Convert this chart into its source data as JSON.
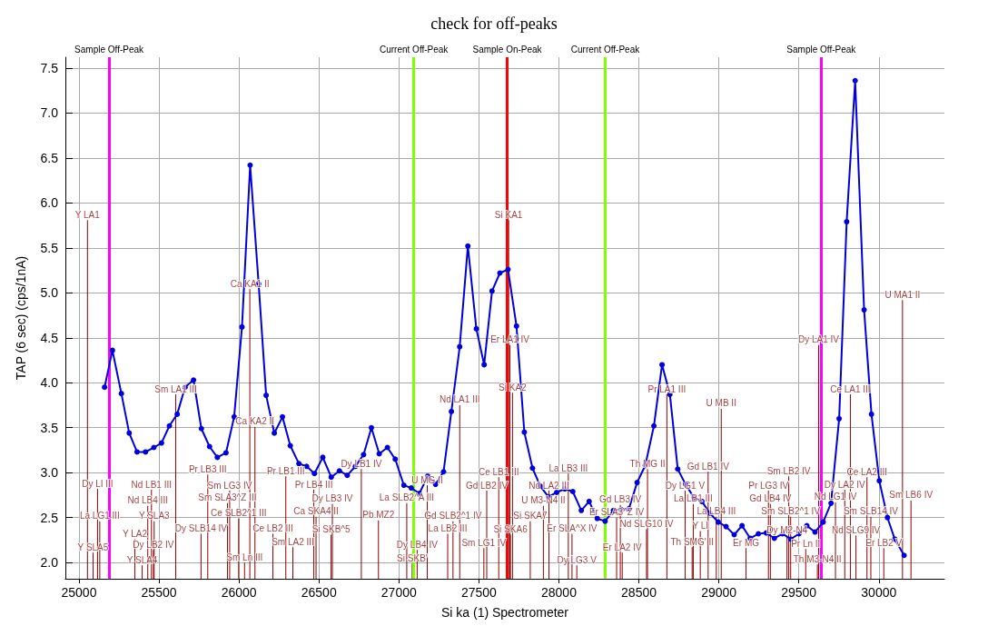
{
  "chart_data": {
    "type": "line",
    "title": "check for off-peaks",
    "xlabel": "Si ka (1) Spectrometer",
    "ylabel": "TAP (6 sec) (cps/1nA)",
    "xlim": [
      24915,
      30410
    ],
    "ylim": [
      1.82,
      7.62
    ],
    "xticks": [
      25000,
      25500,
      26000,
      26500,
      27000,
      27500,
      28000,
      28500,
      29000,
      29500,
      30000
    ],
    "yticks": [
      {
        "value": 2,
        "label": "2.0"
      },
      {
        "value": 2.5,
        "label": "2.5"
      },
      {
        "value": 3,
        "label": "3.0"
      },
      {
        "value": 3.5,
        "label": "3.5"
      },
      {
        "value": 4,
        "label": "4.0"
      },
      {
        "value": 4.5,
        "label": "4.5"
      },
      {
        "value": 5,
        "label": "5.0"
      },
      {
        "value": 5.5,
        "label": "5.5"
      },
      {
        "value": 6,
        "label": "6.0"
      },
      {
        "value": 6.5,
        "label": "6.5"
      },
      {
        "value": 7,
        "label": "7.0"
      },
      {
        "value": 7.5,
        "label": "7.5"
      }
    ],
    "grid": true,
    "marker": "circle",
    "line_style": "solid",
    "series": [
      {
        "color": "#0000dd",
        "x": [
          25160,
          25209,
          25265,
          25314,
          25363,
          25416,
          25468,
          25516,
          25565,
          25614,
          25663,
          25716,
          25765,
          25816,
          25865,
          25919,
          25970,
          26019,
          26070,
          26123,
          26170,
          26221,
          26272,
          26321,
          26375,
          26423,
          26472,
          26524,
          26577,
          26628,
          26677,
          26728,
          26779,
          26828,
          26877,
          26928,
          26977,
          27031,
          27077,
          27128,
          27180,
          27229,
          27279,
          27328,
          27380,
          27431,
          27484,
          27533,
          27582,
          27631,
          27682,
          27735,
          27784,
          27835,
          27884,
          27935,
          27986,
          28037,
          28087,
          28140,
          28189,
          28240,
          28289,
          28341,
          28389,
          28438,
          28489,
          28540,
          28594,
          28645,
          28694,
          28743,
          28792,
          28845,
          28894,
          28943,
          28996,
          29045,
          29096,
          29145,
          29196,
          29247,
          29296,
          29347,
          29398,
          29449,
          29501,
          29550,
          29601,
          29652,
          29701,
          29752,
          29799,
          29852,
          29908,
          29954,
          30003,
          30054,
          30100,
          30158
        ],
        "values": [
          3.95,
          4.36,
          3.88,
          3.44,
          3.23,
          3.23,
          3.28,
          3.33,
          3.52,
          3.65,
          3.95,
          4.03,
          3.49,
          3.29,
          3.17,
          3.22,
          3.62,
          4.62,
          6.42,
          5.1,
          3.86,
          3.44,
          3.62,
          3.3,
          3.1,
          3.07,
          2.99,
          3.17,
          2.95,
          3.02,
          2.97,
          3.07,
          3.2,
          3.5,
          3.21,
          3.28,
          3.15,
          2.86,
          2.83,
          2.77,
          2.96,
          2.87,
          3.01,
          3.68,
          4.4,
          5.52,
          4.6,
          4.2,
          5.02,
          5.22,
          5.26,
          4.63,
          3.45,
          3.05,
          2.85,
          2.73,
          2.78,
          2.82,
          2.79,
          2.58,
          2.68,
          2.49,
          2.46,
          2.58,
          2.59,
          2.6,
          2.89,
          3.08,
          3.52,
          4.2,
          3.87,
          3.04,
          2.87,
          2.72,
          2.68,
          2.55,
          2.45,
          2.4,
          2.31,
          2.41,
          2.27,
          2.32,
          2.33,
          2.27,
          2.32,
          2.26,
          2.32,
          2.41,
          2.34,
          2.45,
          2.66,
          3.6,
          5.79,
          7.36,
          4.81,
          3.65,
          2.91,
          2.5,
          2.26,
          2.08
        ]
      },
      {
        "type": "bar",
        "color": "#8b0000",
        "x": [
          25053,
          25088,
          25116,
          25130,
          25349,
          25395,
          25430,
          25453,
          25465,
          25470,
          25605,
          25763,
          25805,
          25928,
          25942,
          25998,
          26035,
          26068,
          26100,
          26212,
          26293,
          26337,
          26468,
          26482,
          26576,
          26584,
          26765,
          26872,
          27049,
          27083,
          27114,
          27177,
          27305,
          27338,
          27380,
          27531,
          27549,
          27624,
          27686,
          27694,
          27697,
          27710,
          27821,
          27903,
          27938,
          28059,
          28082,
          28112,
          28361,
          28384,
          28396,
          28548,
          28554,
          28675,
          28789,
          28833,
          28840,
          28884,
          28933,
          28984,
          29015,
          29170,
          29310,
          29322,
          29426,
          29437,
          29449,
          29543,
          29616,
          29624,
          29729,
          29787,
          29822,
          29857,
          29926,
          29950,
          30031,
          30148,
          30201
        ],
        "values": [
          5.81,
          2.11,
          2.82,
          2.46,
          2.26,
          1.97,
          2.63,
          2.81,
          2.14,
          2.46,
          3.87,
          2.32,
          2.98,
          2.66,
          2.8,
          2.49,
          2.0,
          5.04,
          3.51,
          2.32,
          2.96,
          2.17,
          2.81,
          2.51,
          2.31,
          2.65,
          3.04,
          2.47,
          2.66,
          1.99,
          2.14,
          2.86,
          2.32,
          2.46,
          3.75,
          2.16,
          2.8,
          2.95,
          5.81,
          4.42,
          2.31,
          3.89,
          2.46,
          2.63,
          2.8,
          2.99,
          2.32,
          1.97,
          2.5,
          2.64,
          2.11,
          2.37,
          3.04,
          3.87,
          2.8,
          2.17,
          2.65,
          2.35,
          3.01,
          2.51,
          3.71,
          2.16,
          2.8,
          2.65,
          2.3,
          2.96,
          2.51,
          2.15,
          1.98,
          4.42,
          2.67,
          2.81,
          3.87,
          2.3,
          2.95,
          2.51,
          2.16,
          4.92,
          2.69
        ]
      }
    ],
    "ref_lines": [
      {
        "axis": "x",
        "value": 27677,
        "label": "Sample On-Peak",
        "color": "#ff0000"
      },
      {
        "axis": "x",
        "value": 25188,
        "label": "Sample Off-Peak",
        "color": "#ff00ff"
      },
      {
        "axis": "x",
        "value": 29640,
        "label": "Sample Off-Peak",
        "color": "#ff00ff"
      },
      {
        "axis": "x",
        "value": 27093,
        "label": "Current Off-Peak",
        "color": "#80ff00"
      },
      {
        "axis": "x",
        "value": 28290,
        "label": "Current Off-Peak",
        "color": "#80ff00"
      }
    ],
    "annotations": [
      {
        "text": "Y LA1",
        "x": 25053,
        "y": 5.81
      },
      {
        "text": "Y SLA5",
        "x": 25088,
        "y": 2.11
      },
      {
        "text": "Dy LI III",
        "x": 25116,
        "y": 2.82
      },
      {
        "text": "La LG1 III",
        "x": 25130,
        "y": 2.46
      },
      {
        "text": "Y LA2",
        "x": 25349,
        "y": 2.26
      },
      {
        "text": "Y SLA4",
        "x": 25395,
        "y": 1.97
      },
      {
        "text": "Nd LB4 III",
        "x": 25430,
        "y": 2.63
      },
      {
        "text": "Nd LB1 III",
        "x": 25453,
        "y": 2.81
      },
      {
        "text": "Dy LB2 IV",
        "x": 25465,
        "y": 2.14
      },
      {
        "text": "Y SLA3",
        "x": 25470,
        "y": 2.46
      },
      {
        "text": "Sm LA1 III",
        "x": 25605,
        "y": 3.87
      },
      {
        "text": "Dy SLB14 IV",
        "x": 25763,
        "y": 2.32
      },
      {
        "text": "Pr LB3 III",
        "x": 25805,
        "y": 2.98
      },
      {
        "text": "Sm SLA3^Z III",
        "x": 25928,
        "y": 2.66
      },
      {
        "text": "Sm LG3 IV",
        "x": 25942,
        "y": 2.8
      },
      {
        "text": "Ce SLB2^1 III",
        "x": 25998,
        "y": 2.49
      },
      {
        "text": "Sm Ln III",
        "x": 26035,
        "y": 2.0
      },
      {
        "text": "Ca KA1 II",
        "x": 26068,
        "y": 5.04
      },
      {
        "text": "Ca KA2 II",
        "x": 26100,
        "y": 3.51
      },
      {
        "text": "Ce LB2 III",
        "x": 26212,
        "y": 2.32
      },
      {
        "text": "Pr LB1 III",
        "x": 26293,
        "y": 2.96
      },
      {
        "text": "Sm LA2 III",
        "x": 26337,
        "y": 2.17
      },
      {
        "text": "Pr LB4 III",
        "x": 26468,
        "y": 2.81
      },
      {
        "text": "Ca SKA4 II",
        "x": 26482,
        "y": 2.51
      },
      {
        "text": "Si SKB^5",
        "x": 26576,
        "y": 2.31
      },
      {
        "text": "Dy LB3 IV",
        "x": 26584,
        "y": 2.65
      },
      {
        "text": "Dy LB1 IV",
        "x": 26765,
        "y": 3.04
      },
      {
        "text": "Pb MZ2",
        "x": 26872,
        "y": 2.47
      },
      {
        "text": "La SLB2^A III",
        "x": 27049,
        "y": 2.66
      },
      {
        "text": "Si SKB'",
        "x": 27083,
        "y": 1.99
      },
      {
        "text": "Dy LB4 IV",
        "x": 27114,
        "y": 2.14
      },
      {
        "text": "U MG II",
        "x": 27177,
        "y": 2.86
      },
      {
        "text": "La LB2 III",
        "x": 27305,
        "y": 2.32
      },
      {
        "text": "Gd SLB2^1 IV",
        "x": 27338,
        "y": 2.46
      },
      {
        "text": "Nd LA1 III",
        "x": 27380,
        "y": 3.75
      },
      {
        "text": "Sm LG1 IV",
        "x": 27531,
        "y": 2.16
      },
      {
        "text": "Gd LB2 IV",
        "x": 27549,
        "y": 2.8
      },
      {
        "text": "Ce LB1 III",
        "x": 27624,
        "y": 2.95
      },
      {
        "text": "Si KA1",
        "x": 27686,
        "y": 5.81
      },
      {
        "text": "Er LA1 IV",
        "x": 27694,
        "y": 4.42
      },
      {
        "text": "Si SKA6",
        "x": 27697,
        "y": 2.31
      },
      {
        "text": "Si KA2",
        "x": 27710,
        "y": 3.89
      },
      {
        "text": "Si SKA7",
        "x": 27821,
        "y": 2.46
      },
      {
        "text": "U M3-N4 II",
        "x": 27903,
        "y": 2.63
      },
      {
        "text": "Nd LA2 III",
        "x": 27938,
        "y": 2.8
      },
      {
        "text": "La LB3 III",
        "x": 28059,
        "y": 2.99
      },
      {
        "text": "Er SLA^X IV",
        "x": 28082,
        "y": 2.32
      },
      {
        "text": "Dy LG3 V",
        "x": 28112,
        "y": 1.97
      },
      {
        "text": "Er SLA3^Z IV",
        "x": 28361,
        "y": 2.5
      },
      {
        "text": "Gd LB3 IV",
        "x": 28384,
        "y": 2.64
      },
      {
        "text": "Er LA2 IV",
        "x": 28396,
        "y": 2.11
      },
      {
        "text": "Nd SLG10 IV",
        "x": 28548,
        "y": 2.37
      },
      {
        "text": "Th MG II",
        "x": 28554,
        "y": 3.04
      },
      {
        "text": "Pr LA1 III",
        "x": 28675,
        "y": 3.87
      },
      {
        "text": "Dy LG1 V",
        "x": 28789,
        "y": 2.8
      },
      {
        "text": "Th SMG' II",
        "x": 28833,
        "y": 2.17
      },
      {
        "text": "La LB1 III",
        "x": 28840,
        "y": 2.65
      },
      {
        "text": "Y LI",
        "x": 28884,
        "y": 2.35
      },
      {
        "text": "Gd LB1 IV",
        "x": 28933,
        "y": 3.01
      },
      {
        "text": "La LB4 III",
        "x": 28984,
        "y": 2.51
      },
      {
        "text": "U MB II",
        "x": 29015,
        "y": 3.71
      },
      {
        "text": "Er MG",
        "x": 29170,
        "y": 2.16
      },
      {
        "text": "Pr LG3 IV",
        "x": 29310,
        "y": 2.8
      },
      {
        "text": "Gd LB4 IV",
        "x": 29322,
        "y": 2.65
      },
      {
        "text": "Dy M2-N4",
        "x": 29426,
        "y": 2.3
      },
      {
        "text": "Sm LB2 IV",
        "x": 29437,
        "y": 2.96
      },
      {
        "text": "Sm SLB2^1 IV",
        "x": 29449,
        "y": 2.51
      },
      {
        "text": "Pr Ln II",
        "x": 29543,
        "y": 2.15
      },
      {
        "text": "Th M3-N4 II",
        "x": 29616,
        "y": 1.98
      },
      {
        "text": "Dy LA1 IV",
        "x": 29624,
        "y": 4.42
      },
      {
        "text": "Nd LG1 IV",
        "x": 29729,
        "y": 2.67
      },
      {
        "text": "Dy LA2 IV",
        "x": 29787,
        "y": 2.81
      },
      {
        "text": "Ce LA1 III",
        "x": 29822,
        "y": 3.87
      },
      {
        "text": "Nd SLG9 IV",
        "x": 29857,
        "y": 2.3
      },
      {
        "text": "Ce LA2 III",
        "x": 29926,
        "y": 2.95
      },
      {
        "text": "Sm SLB14 IV",
        "x": 29950,
        "y": 2.51
      },
      {
        "text": "Er LB2 V",
        "x": 30031,
        "y": 2.16
      },
      {
        "text": "U MA1 II",
        "x": 30148,
        "y": 4.92
      },
      {
        "text": "Sm LB6 IV",
        "x": 30201,
        "y": 2.69
      }
    ]
  }
}
